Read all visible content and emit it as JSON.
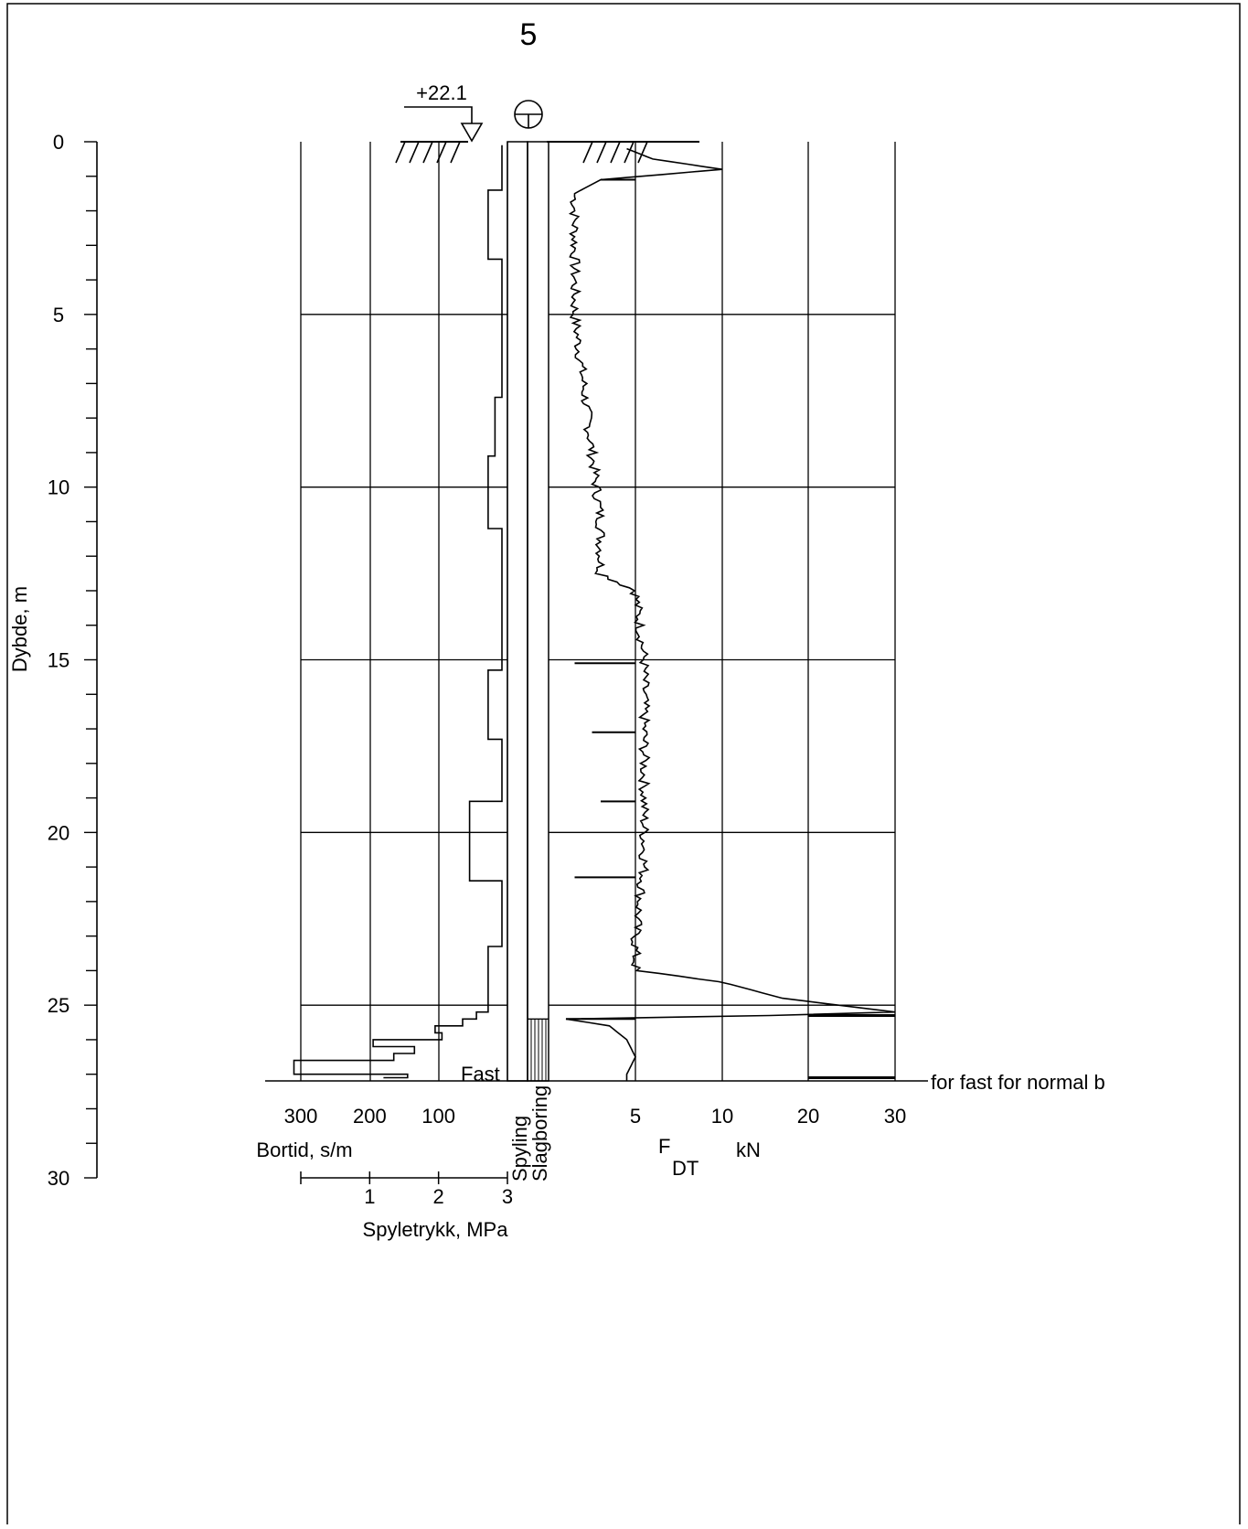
{
  "chart_data": {
    "type": "line",
    "title": "5",
    "elevation_label": "+22.1",
    "depth_axis": {
      "label": "Dybde, m",
      "ticks": [
        0,
        5,
        10,
        15,
        20,
        25,
        30
      ],
      "range": [
        0,
        30
      ],
      "minor_step": 1
    },
    "bortid_axis": {
      "label": "Bortid, s/m",
      "ticks": [
        300,
        200,
        100
      ],
      "range": [
        300,
        0
      ]
    },
    "spyletrykk_axis": {
      "label": "Spyletrykk, MPa",
      "ticks": [
        1,
        2,
        3
      ],
      "range": [
        0,
        3
      ]
    },
    "force_axis": {
      "label_main": "F",
      "label_sub": "DT",
      "unit": "kN",
      "ticks": [
        5,
        10,
        20,
        30
      ],
      "scale": "linear 0-10, then 10-30 compressed"
    },
    "column_labels": [
      "Spyling",
      "Slagboring"
    ],
    "annotations": {
      "fast": "Fast",
      "stop_note": "for fast for normal b"
    },
    "bortid_profile": {
      "depths": [
        0.1,
        1.2,
        1.4,
        3.2,
        3.4,
        7.2,
        7.4,
        8.9,
        9.1,
        11.0,
        11.2,
        15.1,
        15.3,
        17.1,
        17.3,
        18.9,
        19.1,
        21.2,
        21.4,
        23.1,
        23.3,
        24.9,
        25.2,
        25.4,
        25.6,
        25.8,
        26.0,
        26.2,
        26.4,
        26.6,
        26.8,
        27.0,
        27.1
      ],
      "values": [
        8,
        8,
        28,
        28,
        8,
        8,
        18,
        18,
        28,
        28,
        8,
        8,
        28,
        28,
        8,
        8,
        55,
        55,
        8,
        8,
        28,
        28,
        45,
        65,
        105,
        95,
        195,
        135,
        165,
        310,
        310,
        145,
        180
      ]
    },
    "force_profile": {
      "depths": [
        0.2,
        0.5,
        0.8,
        1.1,
        1.5,
        2.0,
        3.0,
        5.0,
        7.0,
        9.0,
        11.0,
        12.5,
        13.0,
        15.0,
        17.0,
        19.0,
        21.0,
        23.0,
        24.0,
        24.4,
        24.8,
        25.2,
        25.4,
        25.6,
        26.0,
        26.5,
        27.0,
        27.2
      ],
      "values": [
        4.5,
        6.0,
        10.0,
        3.0,
        1.5,
        1.5,
        1.5,
        1.5,
        2.0,
        2.5,
        3.0,
        3.0,
        5.0,
        5.5,
        5.5,
        5.5,
        5.5,
        5.0,
        5.0,
        11.0,
        17.0,
        30.0,
        1.0,
        3.5,
        4.5,
        5.0,
        4.5,
        4.5
      ],
      "spikes": [
        {
          "depth": 1.1,
          "value": 3.0
        },
        {
          "depth": 15.1,
          "value": 1.5
        },
        {
          "depth": 17.1,
          "value": 2.5
        },
        {
          "depth": 19.1,
          "value": 3.0
        },
        {
          "depth": 21.3,
          "value": 1.5
        },
        {
          "depth": 25.4,
          "value": 1.0
        }
      ]
    },
    "grid": true
  }
}
